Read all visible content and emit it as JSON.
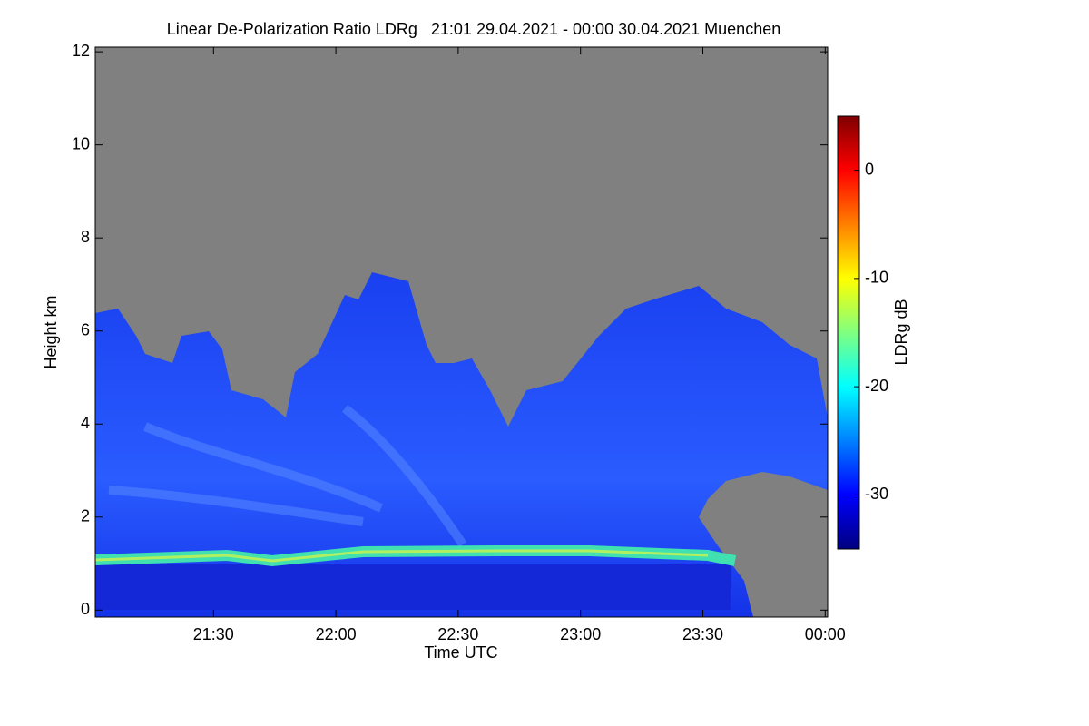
{
  "chart_data": {
    "type": "heatmap",
    "title": "Linear De-Polarization Ratio LDRg   21:01 29.04.2021 - 00:00 30.04.2021 Muenchen",
    "x_label": "Time UTC",
    "y_label": "Height km",
    "colorbar_label": "LDRg dB",
    "xlim": [
      21.0167,
      24.01
    ],
    "xticks": [
      {
        "value": 21.5,
        "label": "21:30"
      },
      {
        "value": 22,
        "label": "22:00"
      },
      {
        "value": 22.5,
        "label": "22:30"
      },
      {
        "value": 23,
        "label": "23:00"
      },
      {
        "value": 23.5,
        "label": "23:30"
      },
      {
        "value": 24,
        "label": "00:00"
      }
    ],
    "ylim": [
      -0.15,
      12.1
    ],
    "yticks": [
      0,
      2,
      4,
      6,
      8,
      10,
      12
    ],
    "clim": [
      -35,
      5
    ],
    "cticks": [
      0,
      -10,
      -20,
      -30
    ],
    "colormap": [
      "#00007f",
      "#0000ff",
      "#0080ff",
      "#00ffff",
      "#80ff80",
      "#ffff00",
      "#ff8000",
      "#ff0000",
      "#7f0000"
    ],
    "background_color": "#808080"
  }
}
